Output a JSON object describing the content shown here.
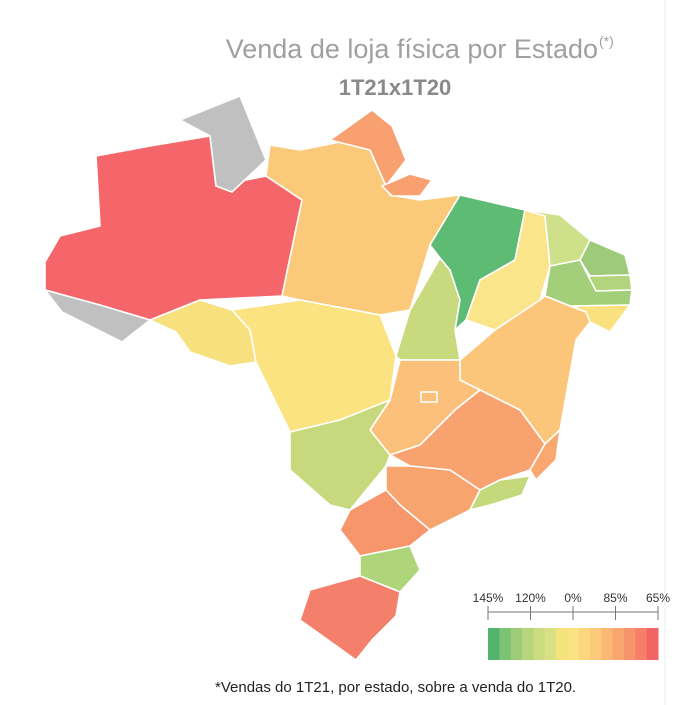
{
  "header": {
    "title": "Venda de loja física por Estado",
    "title_note": "(*)",
    "subtitle": "1T21x1T20"
  },
  "legend": {
    "labels": [
      "145%",
      "120%",
      "0%",
      "85%",
      "65%"
    ],
    "colors": [
      "#52b46e",
      "#7cc373",
      "#9ccc78",
      "#b7d57c",
      "#c9dc80",
      "#d9e183",
      "#f4e27c",
      "#fbe383",
      "#fcd57d",
      "#fcc879",
      "#fbb875",
      "#f9a670",
      "#f8946c",
      "#f57f69",
      "#f36565"
    ]
  },
  "footnote": "*Vendas do 1T21, por estado, sobre a venda do 1T20."
}
